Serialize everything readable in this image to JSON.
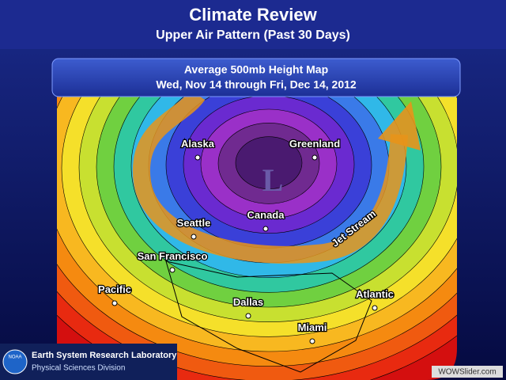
{
  "header": {
    "title": "Climate Review",
    "subtitle": "Upper Air Pattern (Past 30 Days)"
  },
  "map": {
    "title": "Average 500mb Height Map",
    "dates": "Wed, Nov 14 through Fri, Dec 14, 2012",
    "low_label": "L",
    "jet_label": "Jet Stream",
    "places": [
      "Alaska",
      "Greenland",
      "Canada",
      "Seattle",
      "San Francisco",
      "Pacific",
      "Dallas",
      "Atlantic",
      "Miami"
    ]
  },
  "footer": {
    "org": "Earth System Research Laboratory",
    "division": "Physical Sciences Division",
    "logo": "NOAA",
    "watermark": "WOWSlider.com"
  }
}
